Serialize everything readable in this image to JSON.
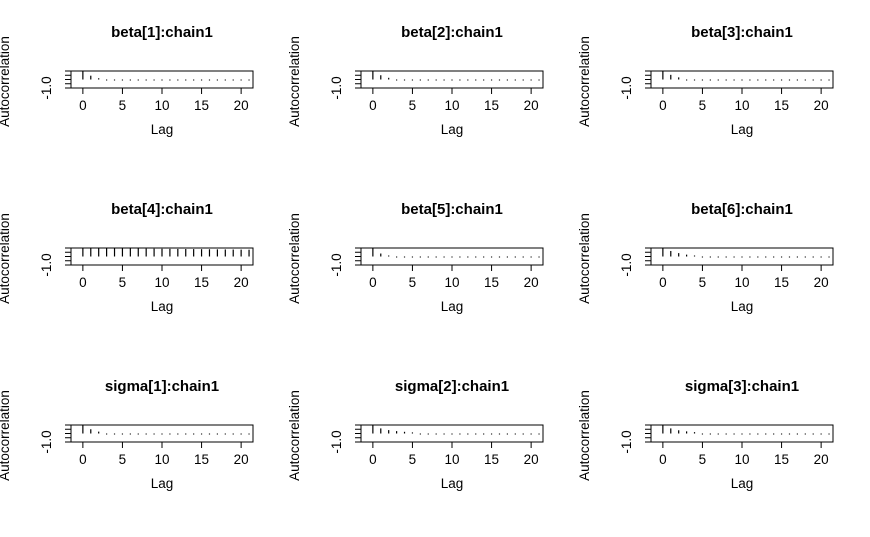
{
  "chart_data": [
    {
      "type": "bar",
      "title": "beta[1]:chain1",
      "xlabel": "Lag",
      "ylabel": "Autocorrelation",
      "x": [
        0,
        1,
        2,
        3,
        4,
        5,
        6,
        7,
        8,
        9,
        10,
        11,
        12,
        13,
        14,
        15,
        16,
        17,
        18,
        19,
        20,
        21
      ],
      "values": [
        1.0,
        0.45,
        0.15,
        0.05,
        0.02,
        0.0,
        0.02,
        -0.01,
        0.0,
        0.01,
        -0.02,
        0.0,
        0.01,
        -0.01,
        0.0,
        0.01,
        -0.01,
        0.0,
        0.01,
        0.0,
        -0.01,
        0.0
      ],
      "xlim": [
        -1.5,
        21.5
      ],
      "ylim": [
        -1.0,
        1.0
      ],
      "xticks": [
        0,
        5,
        10,
        15,
        20
      ],
      "yticks": [
        -1.0
      ]
    },
    {
      "type": "bar",
      "title": "beta[2]:chain1",
      "xlabel": "Lag",
      "ylabel": "Autocorrelation",
      "x": [
        0,
        1,
        2,
        3,
        4,
        5,
        6,
        7,
        8,
        9,
        10,
        11,
        12,
        13,
        14,
        15,
        16,
        17,
        18,
        19,
        20,
        21
      ],
      "values": [
        1.0,
        0.5,
        0.2,
        0.08,
        0.03,
        0.01,
        0.0,
        0.02,
        -0.01,
        0.0,
        0.01,
        -0.01,
        0.0,
        0.01,
        -0.01,
        0.0,
        0.01,
        0.0,
        -0.01,
        0.01,
        0.0,
        -0.01
      ],
      "xlim": [
        -1.5,
        21.5
      ],
      "ylim": [
        -1.0,
        1.0
      ],
      "xticks": [
        0,
        5,
        10,
        15,
        20
      ],
      "yticks": [
        -1.0
      ]
    },
    {
      "type": "bar",
      "title": "beta[3]:chain1",
      "xlabel": "Lag",
      "ylabel": "Autocorrelation",
      "x": [
        0,
        1,
        2,
        3,
        4,
        5,
        6,
        7,
        8,
        9,
        10,
        11,
        12,
        13,
        14,
        15,
        16,
        17,
        18,
        19,
        20,
        21
      ],
      "values": [
        1.0,
        0.55,
        0.25,
        0.1,
        0.04,
        0.02,
        0.0,
        0.01,
        -0.01,
        0.0,
        0.01,
        0.0,
        -0.01,
        0.01,
        0.0,
        -0.01,
        0.0,
        0.01,
        0.0,
        -0.01,
        0.0,
        0.01
      ],
      "xlim": [
        -1.5,
        21.5
      ],
      "ylim": [
        -1.0,
        1.0
      ],
      "xticks": [
        0,
        5,
        10,
        15,
        20
      ],
      "yticks": [
        -1.0
      ]
    },
    {
      "type": "bar",
      "title": "beta[4]:chain1",
      "xlabel": "Lag",
      "ylabel": "Autocorrelation",
      "x": [
        0,
        1,
        2,
        3,
        4,
        5,
        6,
        7,
        8,
        9,
        10,
        11,
        12,
        13,
        14,
        15,
        16,
        17,
        18,
        19,
        20,
        21
      ],
      "values": [
        1.0,
        0.99,
        0.98,
        0.97,
        0.97,
        0.96,
        0.95,
        0.94,
        0.93,
        0.92,
        0.91,
        0.9,
        0.89,
        0.88,
        0.87,
        0.86,
        0.85,
        0.84,
        0.83,
        0.82,
        0.81,
        0.8
      ],
      "xlim": [
        -1.5,
        21.5
      ],
      "ylim": [
        -1.0,
        1.0
      ],
      "xticks": [
        0,
        5,
        10,
        15,
        20
      ],
      "yticks": [
        -1.0
      ]
    },
    {
      "type": "bar",
      "title": "beta[5]:chain1",
      "xlabel": "Lag",
      "ylabel": "Autocorrelation",
      "x": [
        0,
        1,
        2,
        3,
        4,
        5,
        6,
        7,
        8,
        9,
        10,
        11,
        12,
        13,
        14,
        15,
        16,
        17,
        18,
        19,
        20,
        21
      ],
      "values": [
        1.0,
        0.35,
        0.12,
        0.04,
        0.01,
        0.0,
        0.01,
        -0.01,
        0.0,
        0.0,
        0.01,
        -0.01,
        0.0,
        0.01,
        0.0,
        -0.01,
        0.0,
        0.01,
        0.0,
        0.0,
        -0.01,
        0.0
      ],
      "xlim": [
        -1.5,
        21.5
      ],
      "ylim": [
        -1.0,
        1.0
      ],
      "xticks": [
        0,
        5,
        10,
        15,
        20
      ],
      "yticks": [
        -1.0
      ]
    },
    {
      "type": "bar",
      "title": "beta[6]:chain1",
      "xlabel": "Lag",
      "ylabel": "Autocorrelation",
      "x": [
        0,
        1,
        2,
        3,
        4,
        5,
        6,
        7,
        8,
        9,
        10,
        11,
        12,
        13,
        14,
        15,
        16,
        17,
        18,
        19,
        20,
        21
      ],
      "values": [
        1.0,
        0.65,
        0.4,
        0.22,
        0.12,
        0.06,
        0.03,
        0.01,
        0.0,
        0.01,
        -0.01,
        0.0,
        0.01,
        0.0,
        -0.01,
        0.0,
        0.01,
        0.0,
        0.0,
        -0.01,
        0.0,
        0.01
      ],
      "xlim": [
        -1.5,
        21.5
      ],
      "ylim": [
        -1.0,
        1.0
      ],
      "xticks": [
        0,
        5,
        10,
        15,
        20
      ],
      "yticks": [
        -1.0
      ]
    },
    {
      "type": "bar",
      "title": "sigma[1]:chain1",
      "xlabel": "Lag",
      "ylabel": "Autocorrelation",
      "x": [
        0,
        1,
        2,
        3,
        4,
        5,
        6,
        7,
        8,
        9,
        10,
        11,
        12,
        13,
        14,
        15,
        16,
        17,
        18,
        19,
        20,
        21
      ],
      "values": [
        1.0,
        0.5,
        0.22,
        0.1,
        0.05,
        0.02,
        0.01,
        0.0,
        0.01,
        0.0,
        -0.01,
        0.0,
        0.01,
        0.0,
        0.0,
        -0.01,
        0.0,
        0.01,
        0.0,
        0.0,
        -0.01,
        0.0
      ],
      "xlim": [
        -1.5,
        21.5
      ],
      "ylim": [
        -1.0,
        1.0
      ],
      "xticks": [
        0,
        5,
        10,
        15,
        20
      ],
      "yticks": [
        -1.0
      ]
    },
    {
      "type": "bar",
      "title": "sigma[2]:chain1",
      "xlabel": "Lag",
      "ylabel": "Autocorrelation",
      "x": [
        0,
        1,
        2,
        3,
        4,
        5,
        6,
        7,
        8,
        9,
        10,
        11,
        12,
        13,
        14,
        15,
        16,
        17,
        18,
        19,
        20,
        21
      ],
      "values": [
        1.0,
        0.6,
        0.4,
        0.28,
        0.2,
        0.13,
        0.08,
        0.05,
        0.03,
        0.02,
        0.01,
        0.0,
        0.01,
        0.0,
        -0.01,
        0.0,
        0.01,
        0.0,
        0.0,
        -0.01,
        0.0,
        0.0
      ],
      "xlim": [
        -1.5,
        21.5
      ],
      "ylim": [
        -1.0,
        1.0
      ],
      "xticks": [
        0,
        5,
        10,
        15,
        20
      ],
      "yticks": [
        -1.0
      ]
    },
    {
      "type": "bar",
      "title": "sigma[3]:chain1",
      "xlabel": "Lag",
      "ylabel": "Autocorrelation",
      "x": [
        0,
        1,
        2,
        3,
        4,
        5,
        6,
        7,
        8,
        9,
        10,
        11,
        12,
        13,
        14,
        15,
        16,
        17,
        18,
        19,
        20,
        21
      ],
      "values": [
        1.0,
        0.6,
        0.38,
        0.25,
        0.16,
        0.1,
        0.06,
        0.04,
        0.02,
        0.01,
        0.0,
        0.01,
        0.0,
        -0.01,
        0.0,
        0.01,
        0.0,
        0.0,
        -0.01,
        0.0,
        0.01,
        0.0
      ],
      "xlim": [
        -1.5,
        21.5
      ],
      "ylim": [
        -1.0,
        1.0
      ],
      "xticks": [
        0,
        5,
        10,
        15,
        20
      ],
      "yticks": [
        -1.0
      ]
    }
  ]
}
